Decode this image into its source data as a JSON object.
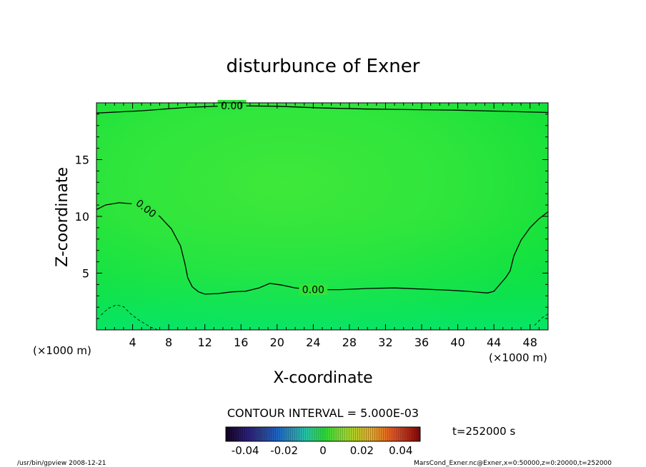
{
  "chart_data": {
    "type": "contour",
    "title": "disturbunce of Exner",
    "xlabel": "X-coordinate",
    "ylabel": "Z-coordinate",
    "x_unit": "(×1000 m)",
    "z_unit": "(×1000 m)",
    "xlim": [
      0,
      50
    ],
    "zlim": [
      0,
      20
    ],
    "x_ticks": [
      4,
      8,
      12,
      16,
      20,
      24,
      28,
      32,
      36,
      40,
      44,
      48
    ],
    "z_ticks": [
      5,
      10,
      15
    ],
    "fill_color": "#12e03a",
    "contour_interval_text": "CONTOUR INTERVAL = 5.000E-03",
    "contours": [
      {
        "level_label": "0.00",
        "style": "solid",
        "points": [
          [
            0,
            19.1
          ],
          [
            5,
            19.3
          ],
          [
            10,
            19.6
          ],
          [
            15,
            19.75
          ],
          [
            20,
            19.7
          ],
          [
            25,
            19.55
          ],
          [
            30,
            19.45
          ],
          [
            35,
            19.4
          ],
          [
            40,
            19.35
          ],
          [
            45,
            19.25
          ],
          [
            50,
            19.15
          ]
        ]
      },
      {
        "level_label": "0.00",
        "style": "solid",
        "points": [
          [
            0,
            10.6
          ],
          [
            1,
            11.0
          ],
          [
            2.5,
            11.2
          ],
          [
            4,
            11.1
          ],
          [
            5.5,
            10.7
          ],
          [
            7,
            10.0
          ],
          [
            8.3,
            8.9
          ],
          [
            9.3,
            7.4
          ],
          [
            9.8,
            5.8
          ],
          [
            10.1,
            4.6
          ],
          [
            10.6,
            3.8
          ],
          [
            11.3,
            3.35
          ],
          [
            12,
            3.15
          ],
          [
            13.5,
            3.2
          ],
          [
            15,
            3.35
          ],
          [
            16.5,
            3.4
          ],
          [
            18,
            3.7
          ],
          [
            19.2,
            4.1
          ],
          [
            20.5,
            3.95
          ],
          [
            22,
            3.7
          ],
          [
            24,
            3.55
          ],
          [
            27,
            3.55
          ],
          [
            30,
            3.65
          ],
          [
            33,
            3.7
          ],
          [
            36,
            3.6
          ],
          [
            39,
            3.5
          ],
          [
            41,
            3.4
          ],
          [
            43.3,
            3.25
          ],
          [
            44,
            3.4
          ],
          [
            45.3,
            4.6
          ],
          [
            45.8,
            5.2
          ],
          [
            46.2,
            6.5
          ],
          [
            47,
            7.9
          ],
          [
            48,
            9.0
          ],
          [
            49,
            9.8
          ],
          [
            50,
            10.4
          ]
        ]
      },
      {
        "level_label": "",
        "style": "dashed",
        "points": [
          [
            0.5,
            1.3
          ],
          [
            1.3,
            1.9
          ],
          [
            2.2,
            2.2
          ],
          [
            3,
            2.05
          ],
          [
            3.8,
            1.4
          ],
          [
            4.8,
            0.8
          ],
          [
            6,
            0.25
          ],
          [
            6.8,
            0
          ]
        ]
      },
      {
        "level_label": "",
        "style": "dashed",
        "points": [
          [
            48.5,
            0.4
          ],
          [
            49.3,
            1.05
          ],
          [
            50,
            1.4
          ]
        ]
      }
    ],
    "colorbar": {
      "ticks": [
        "-0.04",
        "-0.02",
        "0",
        "0.02",
        "0.04"
      ],
      "range": [
        -0.05,
        0.05
      ]
    },
    "time_label": "t=252000 s"
  },
  "footer": {
    "left": "/usr/bin/gpview   2008-12-21",
    "right": "MarsCond_Exner.nc@Exner,x=0:50000,z=0:20000,t=252000"
  }
}
